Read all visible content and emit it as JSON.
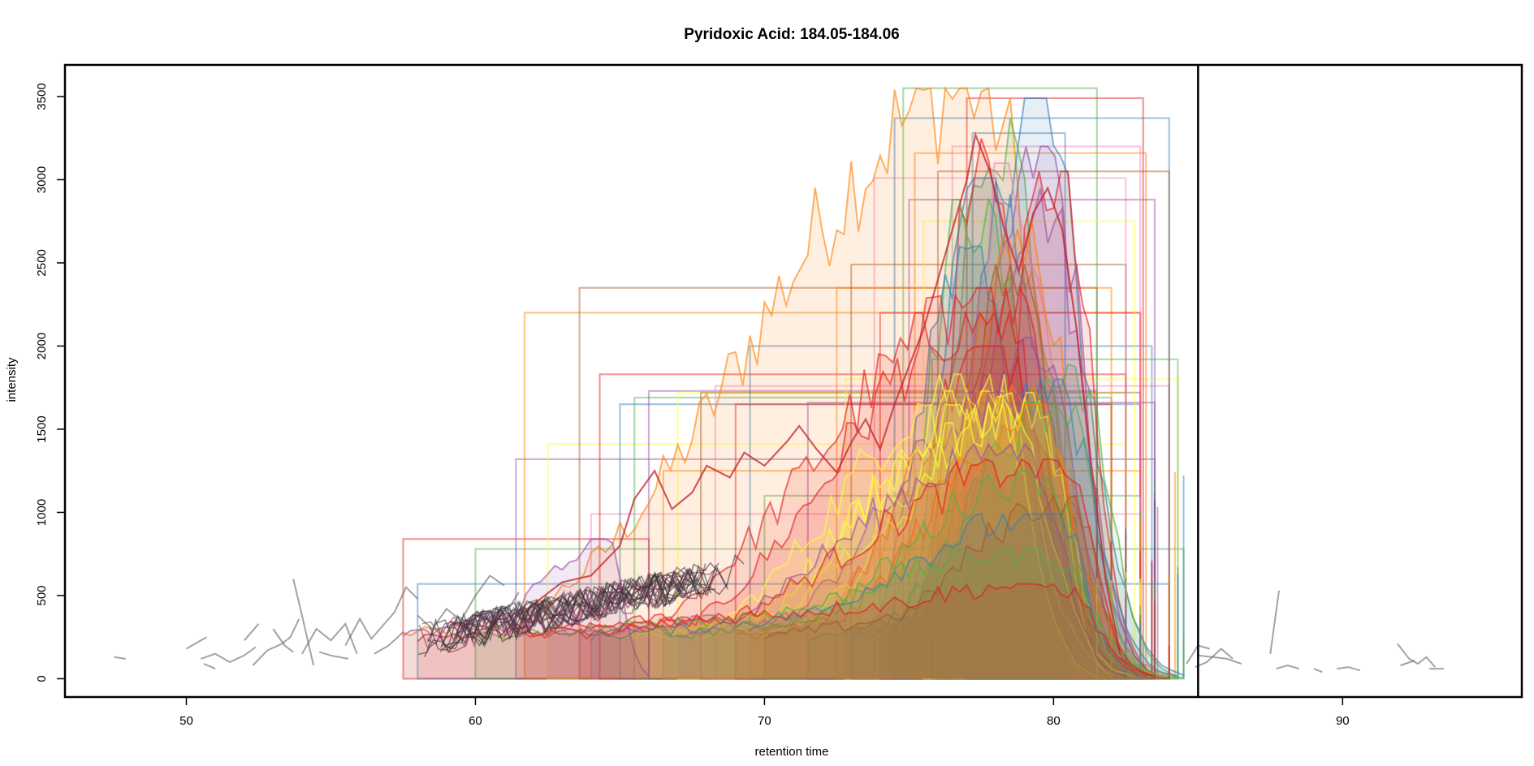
{
  "chart_data": {
    "type": "line",
    "title": "Pyridoxic Acid: 184.05-184.06",
    "xlabel": "retention time",
    "ylabel": "intensity",
    "xlim": [
      45.8,
      96.2
    ],
    "ylim": [
      -110,
      3690
    ],
    "x_ticks": [
      50,
      60,
      70,
      80,
      90
    ],
    "y_ticks": [
      0,
      500,
      1000,
      1500,
      2000,
      2500,
      3000,
      3500
    ],
    "x_tick_labels": [
      "50",
      "60",
      "70",
      "80",
      "90"
    ],
    "y_tick_labels": [
      "0",
      "500",
      "1000",
      "1500",
      "2000",
      "2500",
      "3000",
      "3500"
    ],
    "grid": false,
    "legend": "none",
    "vertical_line_x": 85,
    "series_palette": [
      "#e41a1c",
      "#377eb8",
      "#4daf4a",
      "#984ea3",
      "#ff7f00",
      "#ffff33",
      "#a65628",
      "#f781bf"
    ],
    "noise_color": "#666666",
    "peak_boxes": [
      {
        "x0": 57.5,
        "x1": 66.0,
        "ymax": 840
      },
      {
        "x0": 58.0,
        "x1": 84.0,
        "ymax": 570
      },
      {
        "x0": 60.0,
        "x1": 84.5,
        "ymax": 780
      },
      {
        "x0": 61.4,
        "x1": 83.5,
        "ymax": 1320
      },
      {
        "x0": 61.7,
        "x1": 83.0,
        "ymax": 2200
      },
      {
        "x0": 62.5,
        "x1": 82.5,
        "ymax": 1410
      },
      {
        "x0": 63.6,
        "x1": 81.5,
        "ymax": 2350
      },
      {
        "x0": 64.0,
        "x1": 83.0,
        "ymax": 990
      },
      {
        "x0": 64.3,
        "x1": 82.5,
        "ymax": 1830
      },
      {
        "x0": 65.0,
        "x1": 83.0,
        "ymax": 1650
      },
      {
        "x0": 65.5,
        "x1": 82.0,
        "ymax": 1690
      },
      {
        "x0": 66.0,
        "x1": 81.5,
        "ymax": 1730
      },
      {
        "x0": 66.5,
        "x1": 83.0,
        "ymax": 1250
      },
      {
        "x0": 67.0,
        "x1": 82.5,
        "ymax": 1720
      },
      {
        "x0": 67.8,
        "x1": 83.0,
        "ymax": 1720
      },
      {
        "x0": 68.3,
        "x1": 84.0,
        "ymax": 1760
      },
      {
        "x0": 69.0,
        "x1": 82.0,
        "ymax": 1650
      },
      {
        "x0": 69.5,
        "x1": 83.4,
        "ymax": 2000
      },
      {
        "x0": 70.0,
        "x1": 83.0,
        "ymax": 1100
      },
      {
        "x0": 71.5,
        "x1": 83.5,
        "ymax": 1660
      },
      {
        "x0": 72.5,
        "x1": 82.0,
        "ymax": 2350
      },
      {
        "x0": 72.8,
        "x1": 84.3,
        "ymax": 1800
      },
      {
        "x0": 73.0,
        "x1": 82.5,
        "ymax": 2490
      },
      {
        "x0": 73.8,
        "x1": 82.5,
        "ymax": 3010
      },
      {
        "x0": 74.0,
        "x1": 83.0,
        "ymax": 2200
      },
      {
        "x0": 74.5,
        "x1": 84.0,
        "ymax": 3370
      },
      {
        "x0": 74.8,
        "x1": 81.5,
        "ymax": 3550
      },
      {
        "x0": 75.0,
        "x1": 83.5,
        "ymax": 2880
      },
      {
        "x0": 75.2,
        "x1": 83.2,
        "ymax": 3160
      },
      {
        "x0": 75.5,
        "x1": 82.8,
        "ymax": 2750
      },
      {
        "x0": 76.0,
        "x1": 84.0,
        "ymax": 3050
      },
      {
        "x0": 76.5,
        "x1": 83.0,
        "ymax": 3200
      },
      {
        "x0": 77.0,
        "x1": 83.1,
        "ymax": 3490
      },
      {
        "x0": 77.2,
        "x1": 80.4,
        "ymax": 3280
      },
      {
        "x0": 75.8,
        "x1": 84.3,
        "ymax": 1920
      }
    ],
    "peaks": [
      {
        "start": 57.5,
        "apex": 77.3,
        "end": 84.2,
        "max": 3550,
        "c": 4
      },
      {
        "start": 74.5,
        "apex": 79.2,
        "end": 84.5,
        "max": 3490,
        "c": 1
      },
      {
        "start": 74.5,
        "apex": 77.8,
        "end": 83.5,
        "max": 3370,
        "c": 2
      },
      {
        "start": 75.0,
        "apex": 77.3,
        "end": 81.5,
        "max": 3280,
        "c": 0
      },
      {
        "start": 74.8,
        "apex": 79.6,
        "end": 83.5,
        "max": 3200,
        "c": 3
      },
      {
        "start": 75.2,
        "apex": 78.4,
        "end": 83.0,
        "max": 3100,
        "c": 7
      },
      {
        "start": 76.0,
        "apex": 80.0,
        "end": 83.5,
        "max": 3050,
        "c": 0
      },
      {
        "start": 74.0,
        "apex": 77.5,
        "end": 83.5,
        "max": 3010,
        "c": 1
      },
      {
        "start": 74.3,
        "apex": 79.5,
        "end": 83.6,
        "max": 2950,
        "c": 3
      },
      {
        "start": 73.5,
        "apex": 77.0,
        "end": 83.0,
        "max": 2880,
        "c": 2
      },
      {
        "start": 74.0,
        "apex": 79.0,
        "end": 83.0,
        "max": 2750,
        "c": 4
      },
      {
        "start": 73.0,
        "apex": 76.7,
        "end": 82.5,
        "max": 2600,
        "c": 1
      },
      {
        "start": 74.0,
        "apex": 78.7,
        "end": 82.5,
        "max": 2490,
        "c": 6
      },
      {
        "start": 63.6,
        "apex": 78.5,
        "end": 82.0,
        "max": 2350,
        "c": 0
      },
      {
        "start": 61.7,
        "apex": 77.8,
        "end": 83.0,
        "max": 2200,
        "c": 0
      },
      {
        "start": 73.0,
        "apex": 79.3,
        "end": 83.4,
        "max": 2050,
        "c": 3
      },
      {
        "start": 69.5,
        "apex": 78.2,
        "end": 83.4,
        "max": 2000,
        "c": 0
      },
      {
        "start": 75.0,
        "apex": 80.5,
        "end": 84.3,
        "max": 1920,
        "c": 2
      },
      {
        "start": 64.3,
        "apex": 77.6,
        "end": 82.5,
        "max": 1830,
        "c": 5
      },
      {
        "start": 72.8,
        "apex": 79.8,
        "end": 84.3,
        "max": 1800,
        "c": 1
      },
      {
        "start": 68.3,
        "apex": 78.8,
        "end": 84.0,
        "max": 1760,
        "c": 4
      },
      {
        "start": 66.0,
        "apex": 77.9,
        "end": 81.5,
        "max": 1730,
        "c": 5
      },
      {
        "start": 67.0,
        "apex": 78.5,
        "end": 82.5,
        "max": 1720,
        "c": 3
      },
      {
        "start": 67.8,
        "apex": 79.1,
        "end": 83.0,
        "max": 1720,
        "c": 5
      },
      {
        "start": 65.5,
        "apex": 79.4,
        "end": 82.0,
        "max": 1690,
        "c": 5
      },
      {
        "start": 71.5,
        "apex": 80.2,
        "end": 83.5,
        "max": 1660,
        "c": 2
      },
      {
        "start": 65.0,
        "apex": 78.0,
        "end": 83.0,
        "max": 1650,
        "c": 5
      },
      {
        "start": 69.0,
        "apex": 79.7,
        "end": 82.0,
        "max": 1650,
        "c": 4
      },
      {
        "start": 62.5,
        "apex": 79.0,
        "end": 82.5,
        "max": 1410,
        "c": 3
      },
      {
        "start": 61.4,
        "apex": 80.1,
        "end": 83.5,
        "max": 1320,
        "c": 0
      },
      {
        "start": 66.5,
        "apex": 79.6,
        "end": 83.0,
        "max": 1250,
        "c": 2
      },
      {
        "start": 70.0,
        "apex": 80.6,
        "end": 83.0,
        "max": 1100,
        "c": 6
      },
      {
        "start": 64.0,
        "apex": 80.0,
        "end": 83.0,
        "max": 990,
        "c": 1
      },
      {
        "start": 57.5,
        "apex": 64.5,
        "end": 66.0,
        "max": 840,
        "c": 3
      },
      {
        "start": 60.0,
        "apex": 79.5,
        "end": 84.5,
        "max": 780,
        "c": 2
      },
      {
        "start": 58.0,
        "apex": 80.0,
        "end": 84.0,
        "max": 570,
        "c": 0
      }
    ],
    "red_ridge": [
      [
        61.5,
        380
      ],
      [
        63.0,
        580
      ],
      [
        64.0,
        620
      ],
      [
        65.0,
        800
      ],
      [
        65.5,
        1080
      ],
      [
        66.2,
        1250
      ],
      [
        66.8,
        1020
      ],
      [
        67.5,
        1120
      ],
      [
        68.0,
        1280
      ],
      [
        68.8,
        1210
      ],
      [
        69.3,
        1360
      ],
      [
        70.0,
        1280
      ],
      [
        70.8,
        1430
      ],
      [
        71.2,
        1520
      ],
      [
        71.8,
        1380
      ],
      [
        72.5,
        1240
      ],
      [
        73.0,
        1420
      ],
      [
        73.5,
        1560
      ],
      [
        74.0,
        1380
      ],
      [
        74.5,
        1650
      ],
      [
        75.0,
        1880
      ],
      [
        75.5,
        2100
      ],
      [
        76.0,
        2400
      ],
      [
        76.5,
        2700
      ],
      [
        77.0,
        3000
      ],
      [
        77.3,
        3270
      ],
      [
        77.8,
        3050
      ],
      [
        78.3,
        2700
      ],
      [
        78.8,
        2450
      ],
      [
        79.3,
        2800
      ],
      [
        79.8,
        2950
      ],
      [
        80.3,
        2700
      ],
      [
        80.8,
        2100
      ],
      [
        81.3,
        1300
      ],
      [
        81.8,
        600
      ],
      [
        82.3,
        150
      ]
    ],
    "noise_segments": [
      [
        [
          47.5,
          130
        ],
        [
          47.9,
          120
        ]
      ],
      [
        [
          50.0,
          180
        ],
        [
          50.5,
          230
        ],
        [
          50.7,
          250
        ]
      ],
      [
        [
          50.6,
          90
        ],
        [
          51.0,
          60
        ]
      ],
      [
        [
          50.5,
          120
        ],
        [
          51.0,
          150
        ],
        [
          51.5,
          100
        ],
        [
          52.0,
          140
        ],
        [
          52.4,
          190
        ]
      ],
      [
        [
          52.0,
          230
        ],
        [
          52.5,
          330
        ]
      ],
      [
        [
          52.3,
          80
        ],
        [
          52.8,
          170
        ],
        [
          53.3,
          210
        ],
        [
          53.6,
          250
        ],
        [
          53.9,
          360
        ]
      ],
      [
        [
          53.0,
          300
        ],
        [
          53.4,
          200
        ],
        [
          53.7,
          160
        ]
      ],
      [
        [
          53.7,
          600
        ],
        [
          54.0,
          380
        ],
        [
          54.4,
          80
        ]
      ],
      [
        [
          54.0,
          150
        ],
        [
          54.5,
          300
        ],
        [
          55.0,
          230
        ],
        [
          55.5,
          330
        ],
        [
          55.9,
          150
        ]
      ],
      [
        [
          54.6,
          160
        ],
        [
          55.0,
          140
        ],
        [
          55.6,
          120
        ]
      ],
      [
        [
          55.5,
          200
        ],
        [
          56.0,
          360
        ],
        [
          56.4,
          240
        ],
        [
          56.8,
          320
        ],
        [
          57.2,
          400
        ],
        [
          57.6,
          550
        ],
        [
          58.0,
          480
        ]
      ],
      [
        [
          56.5,
          150
        ],
        [
          57.0,
          200
        ],
        [
          57.5,
          280
        ]
      ],
      [
        [
          58.0,
          380
        ],
        [
          58.5,
          300
        ],
        [
          59.0,
          420
        ],
        [
          59.5,
          350
        ],
        [
          60.0,
          500
        ],
        [
          60.5,
          620
        ],
        [
          61.0,
          560
        ]
      ],
      [
        [
          59.5,
          280
        ],
        [
          60.0,
          320
        ],
        [
          60.5,
          410
        ],
        [
          61.0,
          380
        ],
        [
          61.5,
          520
        ]
      ],
      [
        [
          85.0,
          140
        ],
        [
          85.5,
          130
        ],
        [
          86.0,
          120
        ],
        [
          86.5,
          90
        ]
      ],
      [
        [
          84.9,
          70
        ],
        [
          85.3,
          100
        ],
        [
          85.8,
          180
        ],
        [
          86.2,
          120
        ]
      ],
      [
        [
          84.6,
          90
        ],
        [
          85.0,
          200
        ],
        [
          85.4,
          180
        ]
      ],
      [
        [
          87.5,
          150
        ],
        [
          87.8,
          530
        ]
      ],
      [
        [
          87.7,
          60
        ],
        [
          88.1,
          80
        ],
        [
          88.5,
          60
        ]
      ],
      [
        [
          89.0,
          60
        ],
        [
          89.3,
          40
        ]
      ],
      [
        [
          89.8,
          60
        ],
        [
          90.2,
          70
        ],
        [
          90.6,
          50
        ]
      ],
      [
        [
          91.9,
          210
        ],
        [
          92.3,
          120
        ],
        [
          92.6,
          90
        ],
        [
          92.9,
          130
        ],
        [
          93.2,
          70
        ]
      ],
      [
        [
          92.0,
          80
        ],
        [
          92.5,
          110
        ]
      ],
      [
        [
          93.0,
          60
        ],
        [
          93.5,
          60
        ]
      ]
    ]
  }
}
